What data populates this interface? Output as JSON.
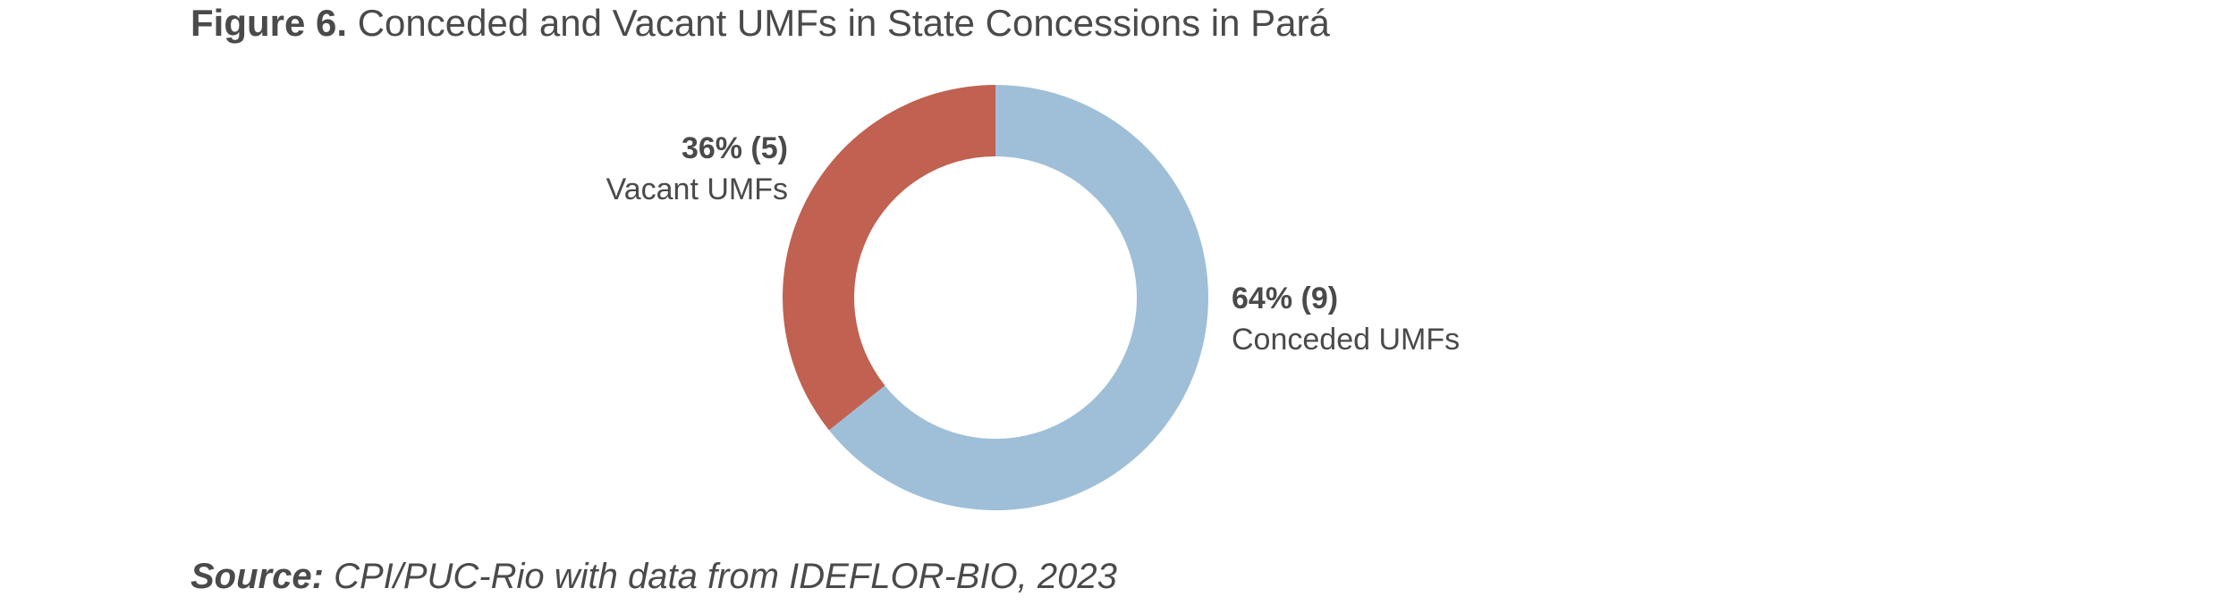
{
  "figure": {
    "title_lead": "Figure 6.",
    "title_text": "Conceded and Vacant UMFs in State Concessions in Pará"
  },
  "source": {
    "lead": "Source:",
    "text": "CPI/PUC-Rio with data from IDEFLOR-BIO, 2023"
  },
  "chart_data": {
    "type": "pie",
    "donut": true,
    "slices": [
      {
        "label": "Conceded UMFs",
        "value": 9,
        "percent_label": "64% (9)",
        "color": "#9fbfd8"
      },
      {
        "label": "Vacant UMFs",
        "value": 5,
        "percent_label": "36% (5)",
        "color": "#c06151"
      }
    ]
  }
}
